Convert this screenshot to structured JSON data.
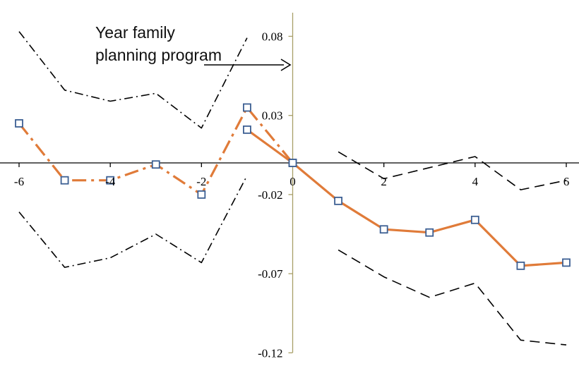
{
  "chart_data": {
    "type": "line",
    "title": "",
    "xlabel": "",
    "ylabel": "",
    "xlim": [
      -6,
      6
    ],
    "ylim": [
      -0.12,
      0.09
    ],
    "x_ticks": [
      -6,
      -4,
      -2,
      0,
      2,
      4,
      6
    ],
    "x_tick_labels": [
      "-6",
      "-4",
      "-2",
      "0",
      "2",
      "4",
      "6"
    ],
    "y_ticks": [
      0.08,
      0.03,
      -0.02,
      -0.07,
      -0.12
    ],
    "y_tick_labels": [
      "0.08",
      "0.03",
      "-0.02",
      "-0.07",
      "-0.12"
    ],
    "grid": false,
    "annotation": {
      "lines": [
        "Year family",
        "planning program"
      ]
    },
    "colors": {
      "estimate_line": "#e07b39",
      "marker": "#3c5f93",
      "ci_line": "#000000",
      "axis": "#a89f68"
    },
    "series": [
      {
        "style": "dash-dot",
        "color": "#e07b39",
        "markers": true,
        "x": [
          -6,
          -5,
          -4,
          -3,
          -2,
          -1,
          0
        ],
        "y": [
          0.025,
          -0.011,
          -0.011,
          -0.001,
          -0.02,
          0.035,
          0.0
        ]
      },
      {
        "style": "solid",
        "color": "#e07b39",
        "markers": true,
        "x": [
          -1,
          0,
          1,
          2,
          3,
          4,
          5,
          6
        ],
        "y": [
          0.021,
          0.0,
          -0.024,
          -0.042,
          -0.044,
          -0.036,
          -0.065,
          -0.063
        ]
      },
      {
        "style": "dash-dot",
        "color": "#000000",
        "markers": false,
        "x": [
          -6,
          -5,
          -4,
          -3,
          -2,
          -1
        ],
        "y": [
          0.083,
          0.046,
          0.039,
          0.044,
          0.022,
          0.079
        ]
      },
      {
        "style": "dash-dot",
        "color": "#000000",
        "markers": false,
        "x": [
          -6,
          -5,
          -4,
          -3,
          -2,
          -1
        ],
        "y": [
          -0.031,
          -0.066,
          -0.06,
          -0.045,
          -0.063,
          -0.008
        ]
      },
      {
        "style": "dashed",
        "color": "#000000",
        "markers": false,
        "x": [
          1,
          2,
          3,
          4,
          5,
          6
        ],
        "y": [
          0.007,
          -0.01,
          -0.003,
          0.004,
          -0.017,
          -0.011
        ]
      },
      {
        "style": "dashed",
        "color": "#000000",
        "markers": false,
        "x": [
          1,
          2,
          3,
          4,
          5,
          6
        ],
        "y": [
          -0.055,
          -0.072,
          -0.085,
          -0.076,
          -0.112,
          -0.115
        ]
      }
    ]
  }
}
